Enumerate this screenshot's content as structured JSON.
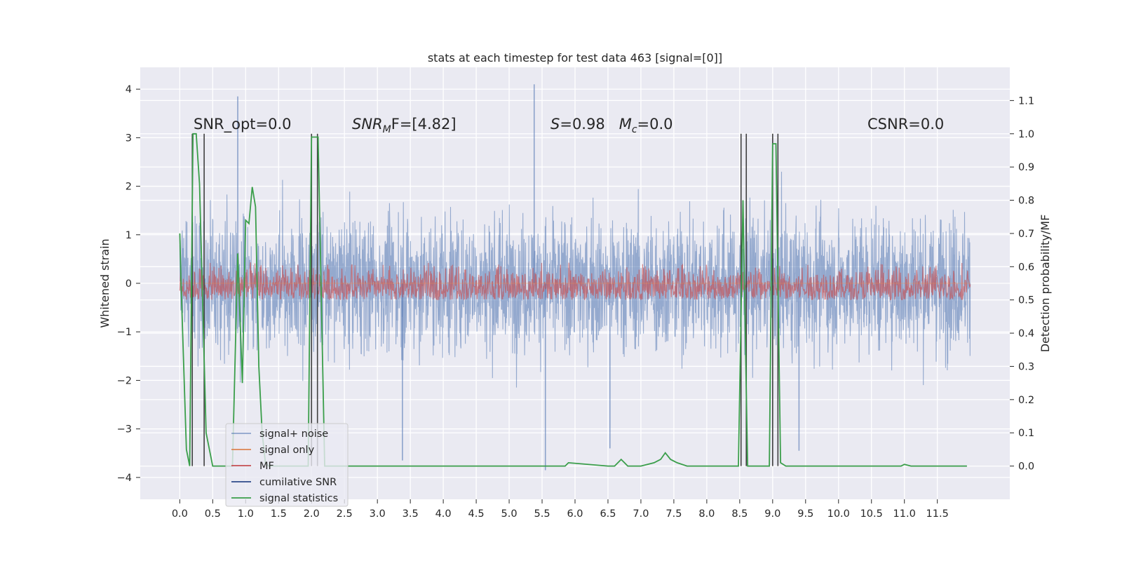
{
  "chart_data": {
    "type": "line",
    "title": "stats at each timestep for test data 463 [signal=[0]]",
    "xlabel": "",
    "ylabel": "Whitened strain",
    "y2label": "Detection probability/MF",
    "xlim": [
      -0.6,
      12.6
    ],
    "ylim": [
      -4.45,
      4.45
    ],
    "y2lim": [
      -0.1,
      1.2
    ],
    "x_ticks": [
      "0.0",
      "0.5",
      "1.0",
      "1.5",
      "2.0",
      "2.5",
      "3.0",
      "3.5",
      "4.0",
      "4.5",
      "5.0",
      "5.5",
      "6.0",
      "6.5",
      "7.0",
      "7.5",
      "8.0",
      "8.5",
      "9.0",
      "9.5",
      "10.0",
      "10.5",
      "11.0",
      "11.5"
    ],
    "y_ticks": [
      "4",
      "3",
      "2",
      "1",
      "0",
      "−1",
      "−2",
      "−3",
      "−4"
    ],
    "y2_ticks": [
      "1.1",
      "1.0",
      "0.9",
      "0.8",
      "0.7",
      "0.6",
      "0.5",
      "0.4",
      "0.3",
      "0.2",
      "0.1",
      "0.0"
    ],
    "grid": true,
    "legend_placement": "lower-left",
    "background_color": "#eaeaf2",
    "annotations": [
      "SNR_opt=0.0",
      "SNR",
      "M",
      "F=[4.82]",
      "S",
      "=0.98",
      "M",
      "c",
      "=0.0",
      "CSNR=0.0"
    ],
    "series": [
      {
        "name": "signal+ noise",
        "color": "#4c72b0",
        "axis": "left",
        "description": "dense whitened strain noise trace, approx amplitude ±2.5 with spikes to ±4, x from 0 to 12",
        "noise_range": [
          -2.5,
          2.5
        ],
        "spikes": [
          [
            0.88,
            3.85
          ],
          [
            5.38,
            4.1
          ],
          [
            5.55,
            -3.85
          ],
          [
            3.38,
            -3.65
          ],
          [
            9.4,
            -3.45
          ],
          [
            6.53,
            -3.4
          ]
        ]
      },
      {
        "name": "signal only",
        "color": "#dd8452",
        "axis": "left",
        "description": "flat (no signal present)",
        "x": [
          0,
          12
        ],
        "y": [
          0,
          0
        ]
      },
      {
        "name": "MF",
        "color": "#c44e52",
        "axis": "right",
        "description": "matched filter trace fluctuating between approx 0.5 and 0.62 on the right axis",
        "range": [
          0.5,
          0.62
        ]
      },
      {
        "name": "cumilative SNR",
        "color": "#2f4a8a",
        "axis": "right",
        "description": "not distinguishable (near zero)",
        "x": [],
        "y": []
      },
      {
        "name": "signal statistics",
        "color": "#3a9e4a",
        "axis": "right",
        "x": [
          0.0,
          0.02,
          0.1,
          0.15,
          0.2,
          0.25,
          0.3,
          0.4,
          0.5,
          0.6,
          0.7,
          0.8,
          0.88,
          0.95,
          1.0,
          1.05,
          1.1,
          1.15,
          1.2,
          1.25,
          1.3,
          1.35,
          1.8,
          1.95,
          2.0,
          2.1,
          2.2,
          2.5,
          5.0,
          5.85,
          5.9,
          6.5,
          6.6,
          6.7,
          6.8,
          7.0,
          7.2,
          7.3,
          7.37,
          7.45,
          7.55,
          7.7,
          8.0,
          8.48,
          8.55,
          8.62,
          8.9,
          8.95,
          9.0,
          9.05,
          9.12,
          9.2,
          9.3,
          10.0,
          10.95,
          11.0,
          11.1,
          11.5,
          11.95
        ],
        "y": [
          0.7,
          0.55,
          0.05,
          0.0,
          1.0,
          1.0,
          0.85,
          0.1,
          0.0,
          0.0,
          0.0,
          0.0,
          0.64,
          0.25,
          0.74,
          0.73,
          0.84,
          0.78,
          0.3,
          0.1,
          0.01,
          0.0,
          0.0,
          0.0,
          0.99,
          0.99,
          0.0,
          0.0,
          0.0,
          0.0,
          0.01,
          0.0,
          0.0,
          0.02,
          0.0,
          0.0,
          0.01,
          0.02,
          0.04,
          0.02,
          0.01,
          0.0,
          0.0,
          0.0,
          0.8,
          0.0,
          0.0,
          0.0,
          0.97,
          0.97,
          0.01,
          0.0,
          0.0,
          0.0,
          0.0,
          0.005,
          0.0,
          0.0,
          0.0
        ]
      }
    ],
    "vertical_lines": {
      "color": "#404040",
      "axis": "right",
      "ymax": 1.0,
      "x": [
        0.19,
        0.37,
        2.0,
        2.09,
        8.52,
        8.6,
        9.0,
        9.08
      ]
    }
  }
}
